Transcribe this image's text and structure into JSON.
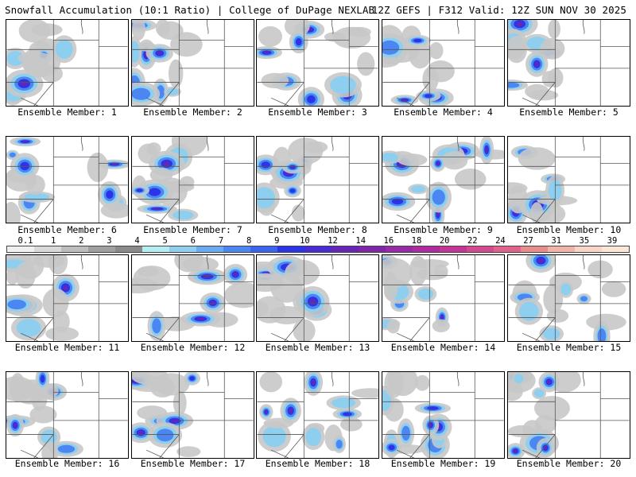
{
  "header": {
    "left": "Snowfall Accumulation (10:1 Ratio) | College of DuPage NEXLAB",
    "right": "12Z GEFS | F312 Valid: 12Z SUN NOV 30 2025"
  },
  "member_prefix": "Ensemble Member: ",
  "members": [
    1,
    2,
    3,
    4,
    5,
    6,
    7,
    8,
    9,
    10,
    11,
    12,
    13,
    14,
    15,
    16,
    17,
    18,
    19,
    20
  ],
  "scale": {
    "labels": [
      "0.1",
      "1",
      "2",
      "3",
      "4",
      "5",
      "6",
      "7",
      "8",
      "9",
      "10",
      "12",
      "14",
      "16",
      "18",
      "20",
      "22",
      "24",
      "27",
      "31",
      "35",
      "39"
    ],
    "colors": [
      "#f0f0f0",
      "#d9d9d9",
      "#bdbdbd",
      "#a0a0a0",
      "#8a8a8a",
      "#b4eef2",
      "#8ecff0",
      "#6aaaf2",
      "#4c86f2",
      "#3a63ef",
      "#2b34e8",
      "#4a2ad4",
      "#6526b8",
      "#7e25a8",
      "#972aa6",
      "#b02aa0",
      "#c43696",
      "#d44a8e",
      "#e1628a",
      "#e98c8c",
      "#f1b4a8",
      "#f8d5c4",
      "#fbe6d8"
    ]
  },
  "colors": {
    "background": "#ffffff",
    "border": "#000000",
    "state_lines": "#555555"
  }
}
